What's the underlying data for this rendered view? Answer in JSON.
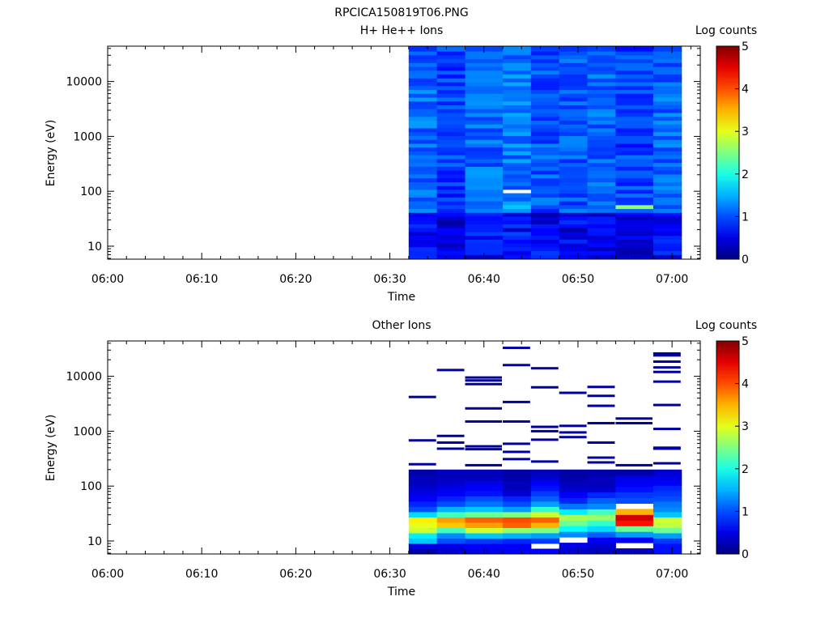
{
  "figure_title": "RPCICA150819T06.PNG",
  "colors": {
    "axis": "#000000",
    "background": "#ffffff"
  },
  "chart_data": [
    {
      "type": "heatmap",
      "title": "H+ He++ Ions",
      "xlabel": "Time",
      "ylabel": "Energy (eV)",
      "yscale": "log",
      "ylim": [
        5.8,
        44000
      ],
      "xlim": [
        "06:00",
        "07:03"
      ],
      "x_ticks": [
        "06:00",
        "06:10",
        "06:20",
        "06:30",
        "06:40",
        "06:50",
        "07:00"
      ],
      "y_ticks": [
        "10",
        "100",
        "1000",
        "10000"
      ],
      "colorbar": {
        "label": "Log counts",
        "range": [
          0,
          5
        ],
        "ticks": [
          "0",
          "1",
          "2",
          "3",
          "4",
          "5"
        ],
        "colormap": "jet"
      },
      "time_bins": [
        "06:32",
        "06:35",
        "06:38",
        "06:42",
        "06:45",
        "06:48",
        "06:51",
        "06:54",
        "06:58"
      ],
      "data_start": "06:32",
      "data_end": "07:01",
      "energy_levels": [
        6.5,
        7.6,
        9,
        10.5,
        12.3,
        14.5,
        17,
        20,
        23.5,
        27.5,
        32.5,
        38,
        44.5,
        52.5,
        61.5,
        72,
        85,
        100,
        117,
        137,
        161,
        190,
        223,
        262,
        308,
        362,
        425,
        500,
        588,
        690,
        810,
        950,
        1120,
        1315,
        1545,
        1815,
        2130,
        2500,
        2940,
        3450,
        4060,
        4770,
        5600,
        6580,
        7730,
        9080,
        10670,
        12540,
        14730,
        17300,
        20330,
        23890,
        28060,
        32970,
        38740
      ],
      "base_levels": [
        0.6,
        0.4,
        0.6,
        0.7,
        0.5,
        0.5,
        0.6,
        0.4,
        0.6
      ],
      "highlights": [
        {
          "time_bin": 3,
          "energy_index": 13,
          "value": 1.6
        },
        {
          "time_bin": 3,
          "energy_index": 17,
          "value": null
        },
        {
          "time_bin": 7,
          "energy_index": 13,
          "value": 2.6
        }
      ]
    },
    {
      "type": "heatmap",
      "title": "Other Ions",
      "xlabel": "Time",
      "ylabel": "Energy (eV)",
      "yscale": "log",
      "ylim": [
        5.8,
        44000
      ],
      "xlim": [
        "06:00",
        "07:03"
      ],
      "x_ticks": [
        "06:00",
        "06:10",
        "06:20",
        "06:30",
        "06:40",
        "06:50",
        "07:00"
      ],
      "y_ticks": [
        "10",
        "100",
        "1000",
        "10000"
      ],
      "colorbar": {
        "label": "Log counts",
        "range": [
          0,
          5
        ],
        "ticks": [
          "0",
          "1",
          "2",
          "3",
          "4",
          "5"
        ],
        "colormap": "jet"
      },
      "time_bins": [
        "06:32",
        "06:35",
        "06:38",
        "06:42",
        "06:45",
        "06:48",
        "06:51",
        "06:54",
        "06:58"
      ],
      "data_start": "06:32",
      "data_end": "07:01",
      "columns": [
        {
          "low": [
            0.2,
            0.5,
            1.6,
            1.8,
            2.9,
            3.0,
            3.2,
            1.7,
            1.0,
            0.8,
            0.6,
            0.5,
            0.4,
            0.3,
            0.3,
            0.2
          ],
          "sparse": [
            250,
            680,
            4200
          ]
        },
        {
          "low": [
            0.4,
            0.5,
            1.0,
            1.3,
            2.2,
            3.4,
            3.6,
            2.2,
            1.5,
            1.0,
            0.8,
            0.6,
            0.5,
            0.4,
            0.3,
            0.3
          ],
          "sparse": [
            480,
            620,
            820,
            13000
          ]
        },
        {
          "low": [
            0.5,
            0.6,
            0.9,
            1.6,
            2.9,
            3.6,
            3.9,
            2.4,
            1.6,
            1.2,
            1.0,
            0.7,
            0.6,
            0.5,
            0.3,
            0.3
          ],
          "sparse": [
            240,
            470,
            530,
            1500,
            2600,
            7200,
            8400,
            9500
          ]
        },
        {
          "low": [
            0.6,
            0.6,
            0.8,
            1.5,
            2.6,
            3.9,
            4.0,
            2.5,
            1.4,
            1.0,
            0.8,
            0.4,
            0.3,
            0.3,
            0.2,
            0.2
          ],
          "sparse": [
            310,
            420,
            590,
            1500,
            3400,
            16000,
            33000
          ]
        },
        {
          "low": [
            0.6,
            null,
            0.9,
            1.4,
            2.5,
            3.5,
            3.9,
            2.9,
            2.1,
            1.4,
            1.1,
            0.9,
            0.7,
            0.6,
            0.4,
            0.3
          ],
          "sparse": [
            280,
            700,
            1000,
            1200,
            6300,
            14000
          ]
        },
        {
          "low": [
            0.4,
            0.5,
            null,
            1.3,
            1.9,
            2.4,
            2.7,
            1.8,
            1.2,
            0.8,
            0.6,
            0.4,
            0.3,
            0.2,
            0.2
          ],
          "sparse": [
            780,
            950,
            1250,
            5000
          ]
        },
        {
          "low": [
            0.3,
            0.4,
            0.6,
            1.1,
            1.7,
            2.1,
            2.6,
            2.2,
            1.3,
            1.1,
            0.8,
            0.4,
            0.3,
            0.3,
            0.2
          ],
          "sparse": [
            270,
            330,
            620,
            1400,
            2900,
            4400,
            6400
          ]
        },
        {
          "low": [
            0.3,
            null,
            0.6,
            1.4,
            2.4,
            4.3,
            4.6,
            3.5,
            null,
            1.0,
            0.9,
            0.7,
            0.6,
            0.5,
            0.2
          ],
          "sparse": [
            240,
            1400,
            1700
          ]
        },
        {
          "low": [
            0.7,
            0.7,
            0.9,
            1.4,
            2.4,
            2.8,
            2.9,
            1.6,
            1.3,
            1.2,
            1.0,
            0.9,
            0.8,
            0.6,
            0.5,
            0.4
          ],
          "sparse": [
            260,
            480,
            500,
            1100,
            3000,
            8000,
            12000,
            14500,
            18500,
            24000,
            26000
          ]
        }
      ]
    }
  ]
}
